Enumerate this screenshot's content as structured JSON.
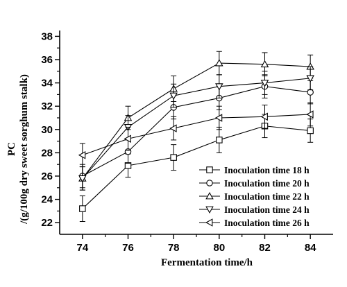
{
  "chart_data": {
    "type": "line",
    "xlabel": "Fermentation time/h",
    "ylabel_line1": "PC",
    "ylabel_line2": "/(g/100g dry sweet sorghum stalk)",
    "xlim": [
      73,
      85
    ],
    "ylim": [
      21,
      38.5
    ],
    "x_ticks": [
      74,
      76,
      78,
      80,
      82,
      84
    ],
    "y_ticks": [
      22,
      24,
      26,
      28,
      30,
      32,
      34,
      36,
      38
    ],
    "legend_position": "lower-right",
    "series": [
      {
        "name": "Inoculation time 18 h",
        "marker": "square",
        "x": [
          74,
          76,
          78,
          80,
          82,
          84
        ],
        "y": [
          23.2,
          26.9,
          27.6,
          29.1,
          30.3,
          29.9
        ],
        "err": [
          1.1,
          1.0,
          1.1,
          1.1,
          1.0,
          1.0
        ]
      },
      {
        "name": "Inoculation time 20 h",
        "marker": "circle",
        "x": [
          74,
          76,
          78,
          80,
          82,
          84
        ],
        "y": [
          26.0,
          28.1,
          31.9,
          32.7,
          33.7,
          33.2
        ],
        "err": [
          1.0,
          1.0,
          1.0,
          1.0,
          1.0,
          1.0
        ]
      },
      {
        "name": "Inoculation time 22 h",
        "marker": "triangle-up",
        "x": [
          74,
          76,
          78,
          80,
          82,
          84
        ],
        "y": [
          25.8,
          31.0,
          33.5,
          35.7,
          35.6,
          35.4
        ],
        "err": [
          1.0,
          1.0,
          1.1,
          1.0,
          1.0,
          1.0
        ]
      },
      {
        "name": "Inoculation time 24 h",
        "marker": "triangle-down",
        "x": [
          74,
          76,
          78,
          80,
          82,
          84
        ],
        "y": [
          25.8,
          30.2,
          32.9,
          33.7,
          34.0,
          34.4
        ],
        "err": [
          1.0,
          1.0,
          1.0,
          1.0,
          1.0,
          1.0
        ]
      },
      {
        "name": "Inoculation time 26 h",
        "marker": "triangle-left",
        "x": [
          74,
          76,
          78,
          80,
          82,
          84
        ],
        "y": [
          27.8,
          29.2,
          30.1,
          31.0,
          31.1,
          31.3
        ],
        "err": [
          1.0,
          1.0,
          1.0,
          1.0,
          1.0,
          1.0
        ]
      }
    ]
  }
}
